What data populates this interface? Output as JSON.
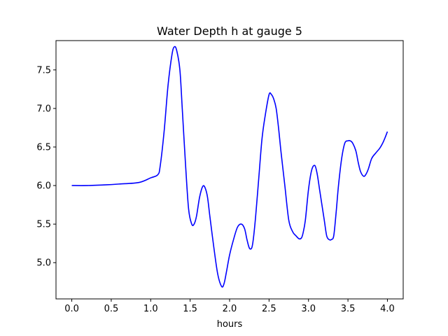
{
  "chart_data": {
    "type": "line",
    "title": "Water Depth h at gauge 5",
    "xlabel": "hours",
    "ylabel": "",
    "xlim": [
      -0.2,
      4.2
    ],
    "ylim": [
      4.53,
      7.88
    ],
    "xticks": [
      "0.0",
      "0.5",
      "1.0",
      "1.5",
      "2.0",
      "2.5",
      "3.0",
      "3.5",
      "4.0"
    ],
    "yticks": [
      "5.0",
      "5.5",
      "6.0",
      "6.5",
      "7.0",
      "7.5"
    ],
    "grid": false,
    "series": [
      {
        "color": "#0000ff",
        "x": [
          0.0,
          0.2,
          0.45,
          0.6,
          0.85,
          1.0,
          1.09,
          1.12,
          1.17,
          1.22,
          1.27,
          1.3,
          1.33,
          1.37,
          1.4,
          1.44,
          1.48,
          1.52,
          1.55,
          1.58,
          1.62,
          1.66,
          1.69,
          1.72,
          1.75,
          1.8,
          1.85,
          1.9,
          1.93,
          1.96,
          2.0,
          2.05,
          2.1,
          2.15,
          2.19,
          2.22,
          2.25,
          2.28,
          2.3,
          2.33,
          2.37,
          2.41,
          2.45,
          2.5,
          2.53,
          2.56,
          2.59,
          2.62,
          2.65,
          2.7,
          2.75,
          2.8,
          2.84,
          2.88,
          2.91,
          2.93,
          2.96,
          3.0,
          3.04,
          3.08,
          3.11,
          3.14,
          3.17,
          3.2,
          3.23,
          3.26,
          3.29,
          3.32,
          3.35,
          3.38,
          3.42,
          3.46,
          3.5,
          3.53,
          3.56,
          3.6,
          3.63,
          3.66,
          3.7,
          3.73,
          3.76,
          3.8,
          3.85,
          3.9,
          3.94,
          3.97,
          4.0
        ],
        "values": [
          6.0,
          6.0,
          6.01,
          6.02,
          6.04,
          6.1,
          6.14,
          6.25,
          6.7,
          7.3,
          7.7,
          7.8,
          7.75,
          7.5,
          7.0,
          6.3,
          5.7,
          5.5,
          5.5,
          5.6,
          5.85,
          5.99,
          5.97,
          5.85,
          5.6,
          5.2,
          4.85,
          4.69,
          4.73,
          4.88,
          5.1,
          5.3,
          5.46,
          5.5,
          5.44,
          5.3,
          5.19,
          5.19,
          5.3,
          5.6,
          6.1,
          6.6,
          6.9,
          7.18,
          7.18,
          7.12,
          7.0,
          6.75,
          6.45,
          6.0,
          5.55,
          5.4,
          5.35,
          5.31,
          5.32,
          5.38,
          5.55,
          5.95,
          6.2,
          6.26,
          6.15,
          5.95,
          5.75,
          5.55,
          5.35,
          5.3,
          5.3,
          5.35,
          5.65,
          6.0,
          6.35,
          6.55,
          6.58,
          6.58,
          6.55,
          6.45,
          6.3,
          6.18,
          6.12,
          6.15,
          6.22,
          6.35,
          6.42,
          6.48,
          6.55,
          6.62,
          6.7
        ]
      }
    ]
  }
}
